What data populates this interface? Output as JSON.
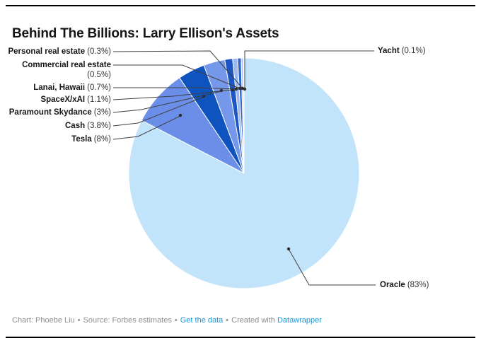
{
  "title": "Behind The Billions: Larry Ellison's Assets",
  "footer": {
    "chart_credit": "Chart: Phoebe Liu",
    "source": "Source: Forbes estimates",
    "get_the_data": "Get the data",
    "created_with": "Created with",
    "datawrapper": "Datawrapper",
    "bullet": "•",
    "text_color": "#8e8e8e",
    "link_color": "#1d96d2"
  },
  "chart_data": {
    "type": "pie",
    "title": "Behind The Billions: Larry Ellison's Assets",
    "unit": "%",
    "direction": "clockwise",
    "start_angle": "12-oclock",
    "legend_position": "callout-labels",
    "slices": [
      {
        "label": "Oracle",
        "value": 83,
        "pct_display": "(83%)",
        "color": "#c2e4fb"
      },
      {
        "label": "Tesla",
        "value": 8,
        "pct_display": "(8%)",
        "color": "#6b8fe8"
      },
      {
        "label": "Cash",
        "value": 3.8,
        "pct_display": "(3.8%)",
        "color": "#0f53be"
      },
      {
        "label": "Paramount Skydance",
        "value": 3,
        "pct_display": "(3%)",
        "color": "#7598ea"
      },
      {
        "label": "SpaceX/xAI",
        "value": 1.1,
        "pct_display": "(1.1%)",
        "color": "#1d56c2"
      },
      {
        "label": "Lanai, Hawaii",
        "value": 0.7,
        "pct_display": "(0.7%)",
        "color": "#9db9f0"
      },
      {
        "label": "Commercial real estate",
        "value": 0.5,
        "pct_display": "(0.5%)",
        "color": "#2e63cb"
      },
      {
        "label": "Personal real estate",
        "value": 0.3,
        "pct_display": "(0.3%)",
        "color": "#aac4f4"
      },
      {
        "label": "Yacht",
        "value": 0.1,
        "pct_display": "(0.1%)",
        "color": "#0b3d8f"
      }
    ],
    "leader_line_color": "#3f3f3f",
    "dot_color": "#2b2b2b"
  }
}
